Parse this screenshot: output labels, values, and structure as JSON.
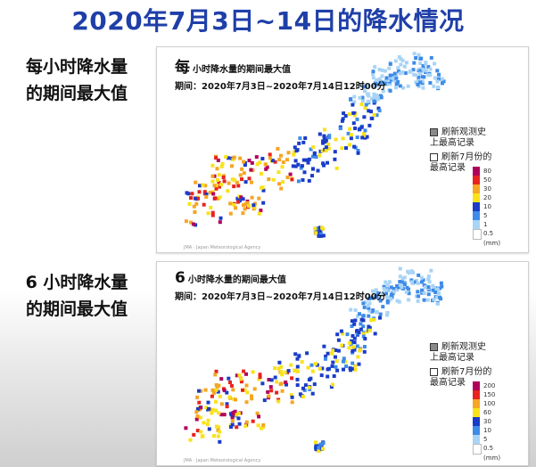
{
  "title": "2020年7月3日~14日的降水情况",
  "panels": [
    {
      "side_label_1": "每小时降水量",
      "side_label_2": "的期间最大值",
      "head_prefix": "每",
      "head_title": "小时降水量的期间最大值",
      "period": "期间：2020年7月3日~2020年7月14日12时00分",
      "note_record": "刷新观测史上最高记录",
      "note_july": "刷新7月份的最高记录",
      "legend": [
        {
          "label": "80",
          "color": "#b1005b"
        },
        {
          "label": "50",
          "color": "#e8231f"
        },
        {
          "label": "30",
          "color": "#f5a623"
        },
        {
          "label": "20",
          "color": "#f9e21a"
        },
        {
          "label": "10",
          "color": "#1a3cc8"
        },
        {
          "label": "5",
          "color": "#3e8be8"
        },
        {
          "label": "1",
          "color": "#a9d4f5"
        },
        {
          "label": "0.5",
          "color": "#ffffff"
        }
      ],
      "legend_unit": "(mm)",
      "credit": "JMA · Japan Meteorological Agency"
    },
    {
      "side_label_1": "6 小时降水量",
      "side_label_2": "的期间最大值",
      "head_prefix": "6",
      "head_title": "小时降水量的期间最大值",
      "period": "期间：2020年7月3日~2020年7月14日12时00分",
      "note_record": "刷新观测史上最高记录",
      "note_july": "刷新7月份的最高记录",
      "legend": [
        {
          "label": "200",
          "color": "#b1005b"
        },
        {
          "label": "150",
          "color": "#e8231f"
        },
        {
          "label": "100",
          "color": "#f5a623"
        },
        {
          "label": "60",
          "color": "#f9e21a"
        },
        {
          "label": "30",
          "color": "#1a3cc8"
        },
        {
          "label": "10",
          "color": "#3e8be8"
        },
        {
          "label": "5",
          "color": "#a9d4f5"
        },
        {
          "label": "0.5",
          "color": "#ffffff"
        }
      ],
      "legend_unit": "(mm)",
      "credit": "JMA · Japan Meteorological Agency"
    }
  ]
}
